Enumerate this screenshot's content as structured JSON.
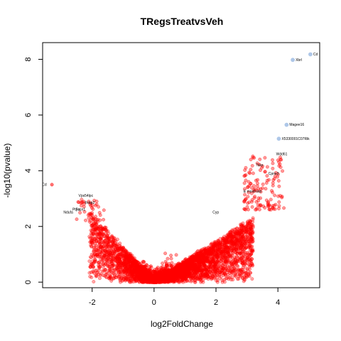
{
  "chart_data": {
    "type": "scatter",
    "title": "TRegsTreatvsVeh",
    "xlabel": "log2FoldChange",
    "ylabel": "-log10(pvalue)",
    "xlim": [
      -3.6,
      5.35
    ],
    "ylim": [
      -0.2,
      8.6
    ],
    "x_ticks": [
      -2,
      0,
      2,
      4
    ],
    "y_ticks": [
      0,
      2,
      4,
      6,
      8
    ],
    "grid": false,
    "legend": "none",
    "colors": {
      "significant": "#ff0000",
      "highlight": "#aec7e8",
      "axis": "#000000"
    },
    "highlighted_points": [
      {
        "x": 5.05,
        "y": 8.18
      },
      {
        "x": 4.48,
        "y": 7.98
      },
      {
        "x": 4.28,
        "y": 5.65
      },
      {
        "x": 4.03,
        "y": 5.15
      }
    ],
    "labeled_points": [
      {
        "label": "Cd",
        "x": 5.05,
        "y": 8.18
      },
      {
        "label": "Xbrl",
        "x": 4.48,
        "y": 7.98
      },
      {
        "label": "Magee16",
        "x": 4.28,
        "y": 5.65
      },
      {
        "label": "X5330001C07Rik",
        "x": 4.03,
        "y": 5.15
      },
      {
        "label": "Wdd61",
        "x": 3.85,
        "y": 4.6
      },
      {
        "label": "Tsks",
        "x": 3.2,
        "y": 4.2
      },
      {
        "label": "Cpne3",
        "x": 3.6,
        "y": 3.9
      },
      {
        "label": "E mosFosb",
        "x": 2.8,
        "y": 3.25
      },
      {
        "label": "Vps54lpc",
        "x": -1.9,
        "y": 3.1
      },
      {
        "label": "Fkbp2",
        "x": -1.85,
        "y": 2.85
      },
      {
        "label": "Fscn1",
        "x": -2.15,
        "y": 2.6
      },
      {
        "label": "Ptprs",
        "x": -2.3,
        "y": 2.6
      },
      {
        "label": "Ndufa",
        "x": -2.55,
        "y": 2.5
      },
      {
        "label": "Cyp",
        "x": 1.8,
        "y": 2.5
      },
      {
        "label": "Cd",
        "x": -3.4,
        "y": 3.5
      }
    ],
    "cloud_params": {
      "n_left": 1600,
      "n_right": 3000,
      "left_x_range": [
        -2.4,
        0
      ],
      "right_x_range": [
        0,
        4.2
      ]
    }
  }
}
